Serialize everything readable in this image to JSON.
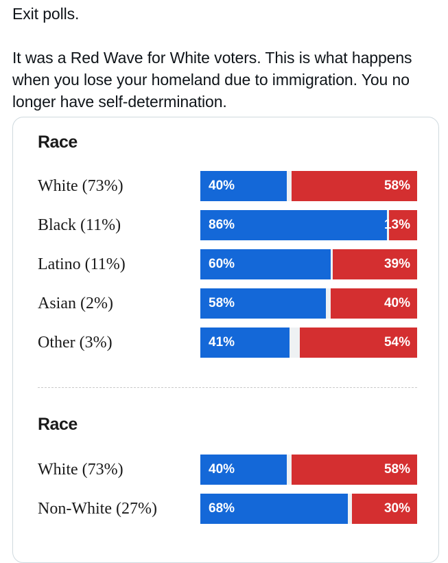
{
  "tweet": {
    "line1": "Exit polls.",
    "line2": "It was a Red Wave for White voters. This is what happens when you lose your homeland due to immigration. You no longer have self-determination."
  },
  "colors": {
    "dem": "#1468d8",
    "rep": "#d42f30",
    "track": "#eef1f3"
  },
  "chart_data": [
    {
      "type": "bar",
      "orientation": "horizontal-stacked",
      "title": "Race",
      "categories": [
        "White (73%)",
        "Black (11%)",
        "Latino (11%)",
        "Asian (2%)",
        "Other (3%)"
      ],
      "series": [
        {
          "values": [
            40,
            86,
            60,
            58,
            41
          ],
          "labels": [
            "40%",
            "86%",
            "60%",
            "58%",
            "41%"
          ]
        },
        {
          "values": [
            58,
            13,
            39,
            40,
            54
          ],
          "labels": [
            "58%",
            "13%",
            "39%",
            "40%",
            "54%"
          ]
        }
      ],
      "xlim": [
        0,
        100
      ],
      "grid": false
    },
    {
      "type": "bar",
      "orientation": "horizontal-stacked",
      "title": "Race",
      "categories": [
        "White (73%)",
        "Non-White (27%)"
      ],
      "series": [
        {
          "values": [
            40,
            68
          ],
          "labels": [
            "40%",
            "68%"
          ]
        },
        {
          "values": [
            58,
            30
          ],
          "labels": [
            "58%",
            "30%"
          ]
        }
      ],
      "xlim": [
        0,
        100
      ],
      "grid": false
    }
  ]
}
